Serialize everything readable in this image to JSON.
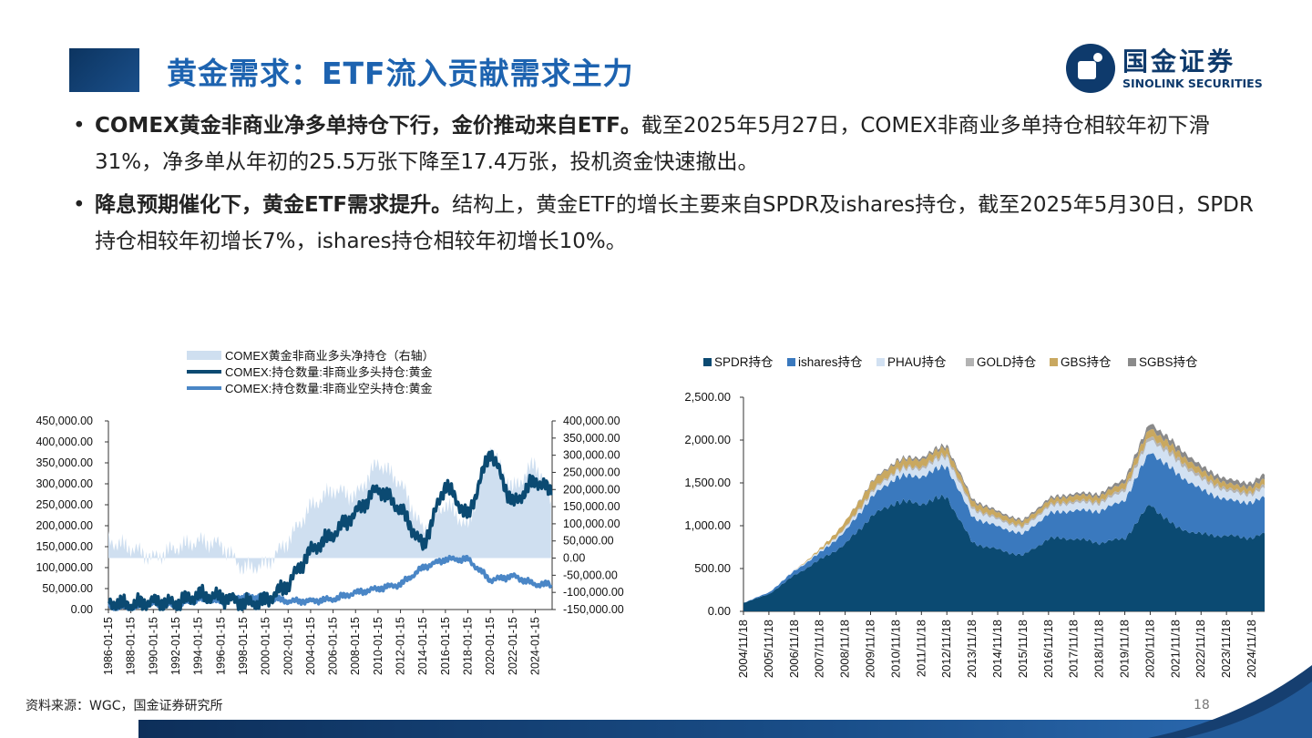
{
  "header": {
    "title": "黄金需求：ETF流入贡献需求主力",
    "logo_cn": "国金证券",
    "logo_en": "SINOLINK SECURITIES"
  },
  "bullets": [
    {
      "bold": "COMEX黄金非商业净多单持仓下行，金价推动来自ETF。",
      "text": "截至2025年5月27日，COMEX非商业多单持仓相较年初下滑31%，净多单从年初的25.5万张下降至17.4万张，投机资金快速撤出。"
    },
    {
      "bold": "降息预期催化下，黄金ETF需求提升。",
      "text": "结构上，黄金ETF的增长主要来自SPDR及ishares持仓，截至2025年5月30日，SPDR持仓相较年初增长7%，ishares持仓相较年初增长10%。"
    }
  ],
  "colors": {
    "title": "#1d63b0",
    "navy": "#0e3a6c",
    "spdr": "#0b4a72",
    "ishares": "#3a79be",
    "phau": "#d2e1f2",
    "gold": "#b3b3b3",
    "gbs": "#c9a860",
    "sgbs": "#8a8a8a",
    "net_long": "#cfdff0",
    "long": "#0b4a72",
    "short": "#4a86c6"
  },
  "chart_data": [
    {
      "type": "line",
      "legend": [
        "COMEX黄金非商业多头净持仓（右轴）",
        "COMEX:持仓数量:非商业多头持仓:黄金",
        "COMEX:持仓数量:非商业空头持仓:黄金"
      ],
      "x_ticks": [
        "1986-01-15",
        "1988-01-15",
        "1990-01-15",
        "1992-01-15",
        "1994-01-15",
        "1996-01-15",
        "1998-01-15",
        "2000-01-15",
        "2002-01-15",
        "2004-01-15",
        "2006-01-15",
        "2008-01-15",
        "2010-01-15",
        "2012-01-15",
        "2014-01-15",
        "2016-01-15",
        "2018-01-15",
        "2020-01-15",
        "2022-01-15",
        "2024-01-15"
      ],
      "y_left_ticks": [
        "450,000.00",
        "400,000.00",
        "350,000.00",
        "300,000.00",
        "250,000.00",
        "200,000.00",
        "150,000.00",
        "100,000.00",
        "50,000.00",
        "0.00"
      ],
      "y_right_ticks": [
        "400,000.00",
        "350,000.00",
        "300,000.00",
        "250,000.00",
        "200,000.00",
        "150,000.00",
        "100,000.00",
        "50,000.00",
        "0.00",
        "-50,000.00",
        "-100,000.00",
        "-150,000.00"
      ],
      "ylim_left": [
        0,
        450000
      ],
      "ylim_right": [
        -150000,
        400000
      ],
      "years": [
        1986,
        1988,
        1990,
        1992,
        1994,
        1996,
        1998,
        2000,
        2002,
        2004,
        2006,
        2008,
        2010,
        2012,
        2014,
        2016,
        2018,
        2020,
        2022,
        2024,
        2025.4
      ],
      "series": [
        {
          "values": [
            50000,
            30000,
            0,
            30000,
            50000,
            40000,
            -30000,
            -20000,
            50000,
            150000,
            200000,
            180000,
            280000,
            220000,
            80000,
            160000,
            90000,
            320000,
            200000,
            280000,
            174000
          ]
        },
        {
          "values": [
            15000,
            12000,
            18000,
            15000,
            35000,
            30000,
            15000,
            20000,
            60000,
            140000,
            180000,
            230000,
            290000,
            240000,
            150000,
            300000,
            220000,
            380000,
            250000,
            310000,
            280000
          ]
        },
        {
          "values": [
            8000,
            5000,
            15000,
            10000,
            25000,
            20000,
            30000,
            30000,
            20000,
            20000,
            25000,
            40000,
            50000,
            60000,
            100000,
            120000,
            120000,
            70000,
            80000,
            60000,
            60000
          ]
        }
      ]
    },
    {
      "type": "area",
      "legend": [
        "SPDR持仓",
        "ishares持仓",
        "PHAU持仓",
        "GOLD持仓",
        "GBS持仓",
        "SGBS持仓"
      ],
      "x_ticks": [
        "2004/11/18",
        "2005/11/18",
        "2006/11/18",
        "2007/11/18",
        "2008/11/18",
        "2009/11/18",
        "2010/11/18",
        "2011/11/18",
        "2012/11/18",
        "2013/11/18",
        "2014/11/18",
        "2015/11/18",
        "2016/11/18",
        "2017/11/18",
        "2018/11/18",
        "2019/11/18",
        "2020/11/18",
        "2021/11/18",
        "2022/11/18",
        "2023/11/18",
        "2024/11/18"
      ],
      "y_ticks": [
        "2,500.00",
        "2,000.00",
        "1,500.00",
        "1,000.00",
        "500.00",
        "0.00"
      ],
      "ylim": [
        0,
        2500
      ],
      "x": [
        2004.9,
        2005.9,
        2006.9,
        2007.9,
        2008.9,
        2009.9,
        2010.9,
        2011.9,
        2012.9,
        2013.9,
        2014.9,
        2015.9,
        2016.9,
        2017.9,
        2018.9,
        2019.9,
        2020.9,
        2021.9,
        2022.9,
        2023.9,
        2024.9,
        2025.4
      ],
      "series": [
        {
          "name": "SPDR持仓",
          "values": [
            100,
            200,
            420,
            600,
            780,
            1100,
            1280,
            1260,
            1340,
            800,
            720,
            650,
            850,
            850,
            800,
            850,
            1250,
            980,
            900,
            880,
            860,
            900
          ]
        },
        {
          "name": "ishares持仓",
          "values": [
            0,
            20,
            50,
            80,
            150,
            220,
            290,
            320,
            360,
            300,
            270,
            250,
            290,
            330,
            370,
            450,
            620,
            640,
            520,
            420,
            410,
            430
          ]
        },
        {
          "name": "PHAU持仓",
          "values": [
            0,
            0,
            10,
            20,
            30,
            50,
            70,
            90,
            110,
            90,
            80,
            70,
            80,
            90,
            90,
            110,
            150,
            150,
            120,
            100,
            90,
            110
          ]
        },
        {
          "name": "GOLD持仓",
          "values": [
            0,
            0,
            0,
            0,
            10,
            20,
            20,
            25,
            30,
            25,
            20,
            20,
            20,
            25,
            25,
            30,
            40,
            40,
            35,
            30,
            30,
            35
          ]
        },
        {
          "name": "GBS持仓",
          "values": [
            0,
            0,
            0,
            20,
            70,
            100,
            90,
            85,
            80,
            70,
            60,
            50,
            55,
            60,
            60,
            70,
            90,
            80,
            70,
            60,
            60,
            65
          ]
        },
        {
          "name": "SGBS持仓",
          "values": [
            0,
            0,
            0,
            0,
            0,
            10,
            20,
            25,
            30,
            25,
            20,
            20,
            25,
            25,
            30,
            40,
            60,
            60,
            50,
            50,
            50,
            60
          ]
        }
      ]
    }
  ],
  "footer": {
    "source": "资料来源：WGC，国金证券研究所",
    "page": "18"
  }
}
